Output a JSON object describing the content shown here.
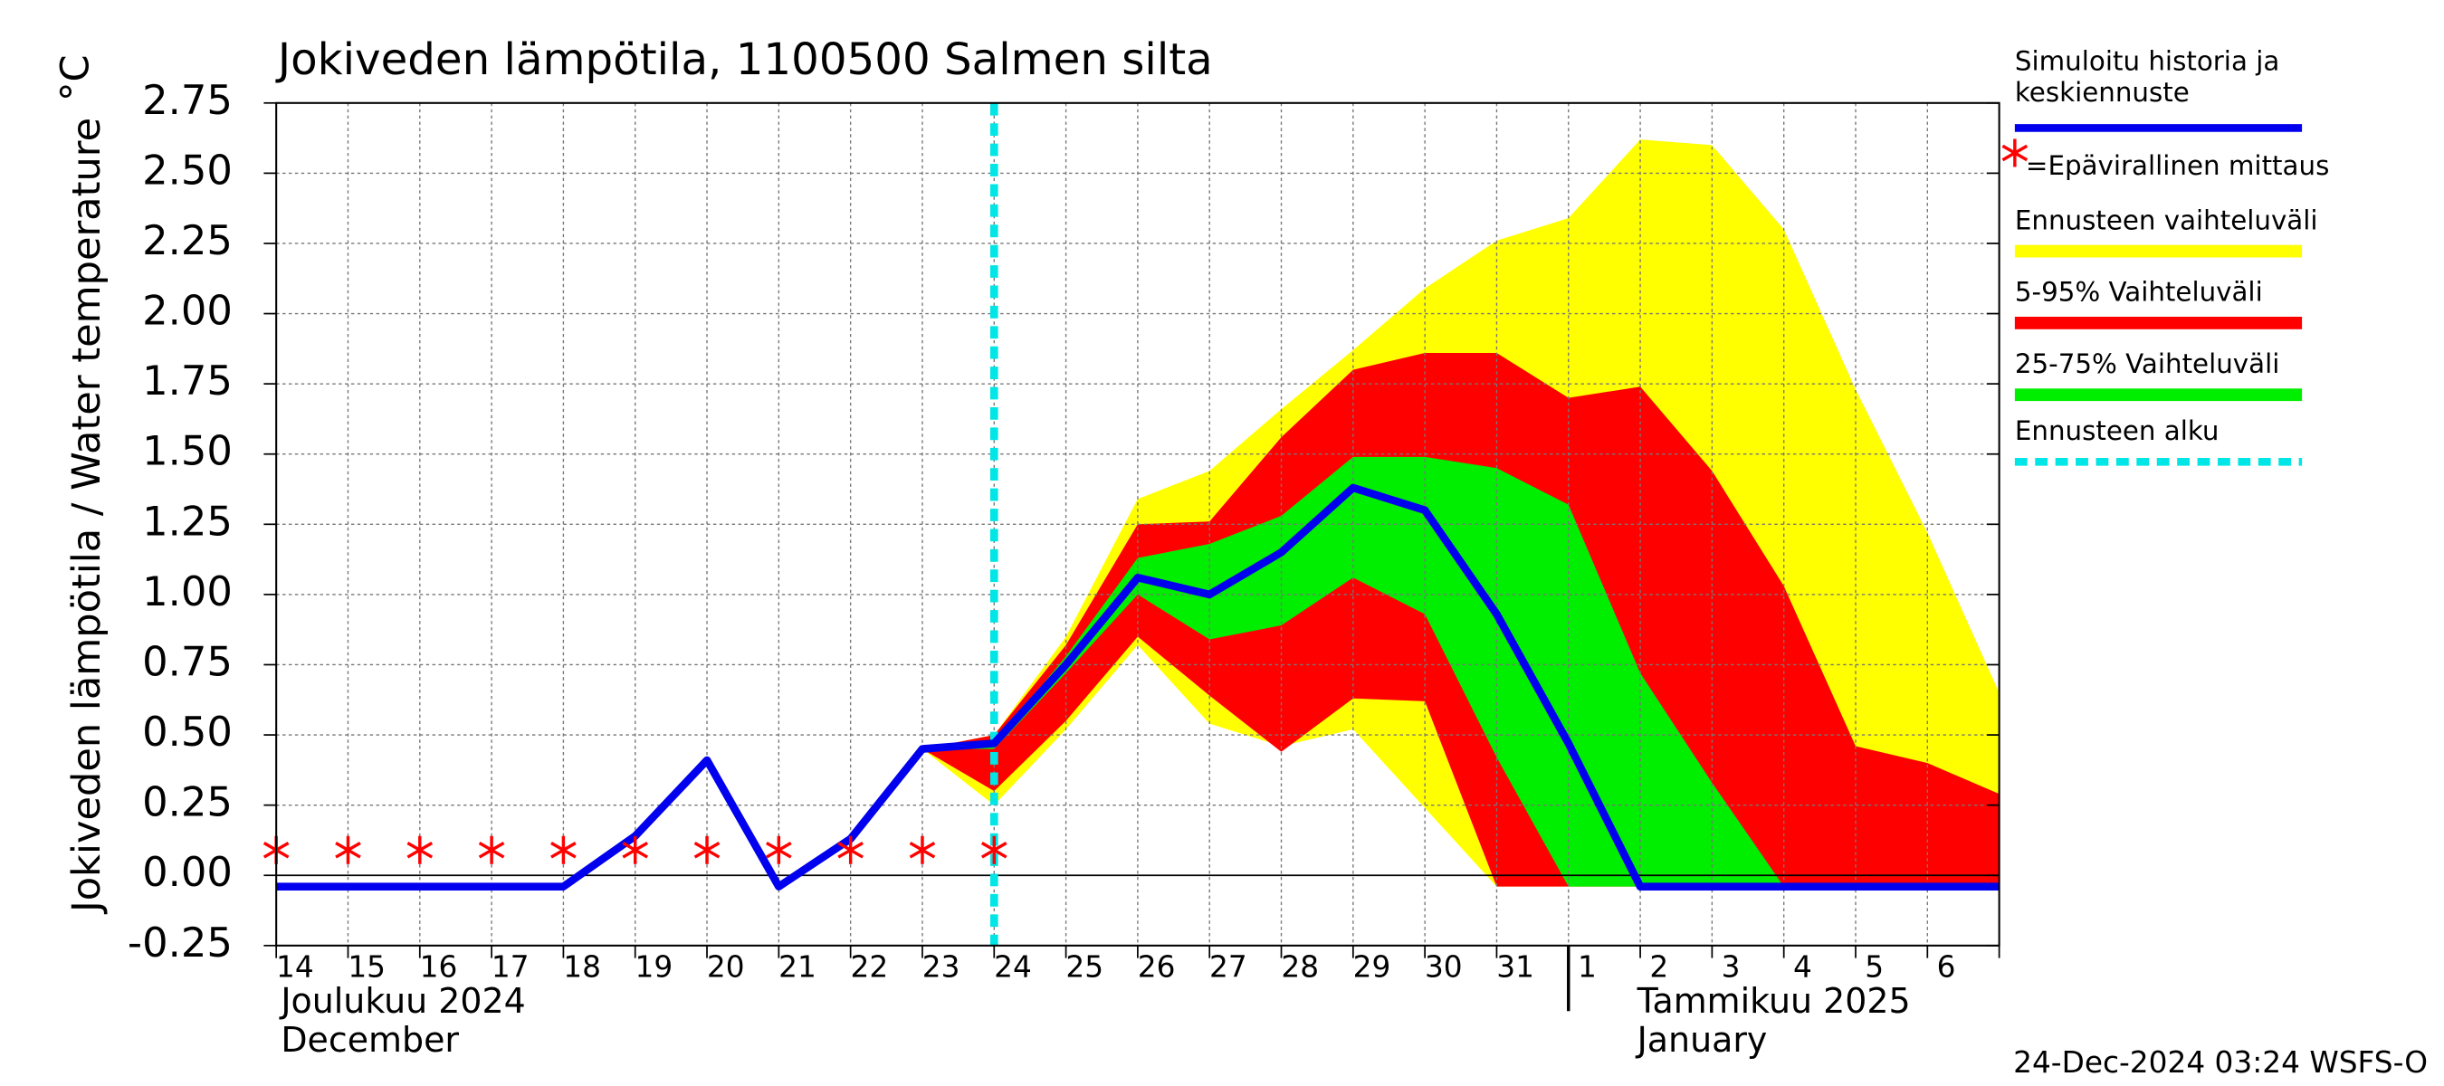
{
  "chart_data": {
    "type": "line",
    "title": "Jokiveden lämpötila, 1100500 Salmen silta",
    "y_label": "Jokiveden lämpötila / Water temperature",
    "y_unit": "°C",
    "categories": [
      "14",
      "15",
      "16",
      "17",
      "18",
      "19",
      "20",
      "21",
      "22",
      "23",
      "24",
      "25",
      "26",
      "27",
      "28",
      "29",
      "30",
      "31",
      "1",
      "2",
      "3",
      "4",
      "5",
      "6",
      null
    ],
    "months": [
      {
        "index": 0,
        "label": "Joulukuu  2024",
        "label_en": "December"
      },
      {
        "index": 18,
        "label": "Tammikuu  2025",
        "label_en": "January"
      }
    ],
    "ylim": [
      -0.25,
      2.75
    ],
    "yticks": [
      -0.25,
      {
        "value": 0,
        "label": "0.00"
      },
      0.25,
      {
        "value": 0.5,
        "label": "0.50"
      },
      0.75,
      {
        "value": 1,
        "label": "1.00"
      },
      1.25,
      {
        "value": 1.5,
        "label": "1.50"
      },
      1.75,
      {
        "value": 2,
        "label": "2.00"
      },
      2.25,
      {
        "value": 2.5,
        "label": "2.50"
      },
      2.75
    ],
    "grid": true,
    "series": [
      {
        "name": "Simuloitu historia ja keskiennuste",
        "color": "#0000ee",
        "values": [
          -0.04,
          -0.04,
          -0.04,
          -0.04,
          -0.04,
          0.14,
          0.41,
          -0.04,
          0.13,
          0.45,
          0.47,
          0.75,
          1.06,
          1.0,
          1.15,
          1.38,
          1.3,
          0.93,
          0.47,
          -0.04,
          -0.04,
          -0.04,
          -0.04,
          -0.04,
          -0.04
        ]
      },
      {
        "name": "=Epävirallinen mittaus",
        "color": "#ff0000",
        "values": [
          0.09,
          0.09,
          0.09,
          0.09,
          0.09,
          0.09,
          0.09,
          0.09,
          0.09,
          0.09,
          0.09,
          null,
          null,
          null,
          null,
          null,
          null,
          null,
          null,
          null,
          null,
          null,
          null,
          null,
          null
        ]
      }
    ],
    "bands": [
      {
        "name": "Ennusteen vaihteluväli",
        "color": "#ffff00",
        "upper": [
          null,
          null,
          null,
          null,
          null,
          null,
          null,
          null,
          null,
          0.45,
          0.5,
          0.85,
          1.34,
          1.44,
          1.66,
          1.87,
          2.09,
          2.26,
          2.34,
          2.62,
          2.6,
          2.3,
          1.73,
          1.22,
          0.65
        ],
        "lower": [
          null,
          null,
          null,
          null,
          null,
          null,
          null,
          null,
          null,
          0.45,
          0.25,
          0.52,
          0.82,
          0.54,
          0.46,
          0.52,
          0.24,
          -0.04,
          -0.04,
          -0.04,
          -0.04,
          -0.04,
          -0.04,
          -0.04,
          -0.04
        ]
      },
      {
        "name": "5-95% Vaihteluväli",
        "color": "#ff0000",
        "upper": [
          null,
          null,
          null,
          null,
          null,
          null,
          null,
          null,
          null,
          0.45,
          0.5,
          0.82,
          1.25,
          1.26,
          1.56,
          1.8,
          1.86,
          1.86,
          1.7,
          1.74,
          1.44,
          1.03,
          0.46,
          0.4,
          0.29
        ],
        "lower": [
          null,
          null,
          null,
          null,
          null,
          null,
          null,
          null,
          null,
          0.45,
          0.3,
          0.55,
          0.85,
          0.64,
          0.44,
          0.63,
          0.62,
          -0.04,
          -0.04,
          -0.04,
          -0.04,
          -0.04,
          -0.04,
          -0.04,
          -0.04
        ]
      },
      {
        "name": "25-75% Vaihteluväli",
        "color": "#00ee00",
        "upper": [
          null,
          null,
          null,
          null,
          null,
          null,
          null,
          null,
          null,
          0.45,
          0.47,
          0.78,
          1.13,
          1.18,
          1.28,
          1.49,
          1.49,
          1.45,
          1.32,
          0.72,
          0.33,
          -0.04,
          -0.04,
          -0.04,
          -0.04
        ],
        "lower": [
          null,
          null,
          null,
          null,
          null,
          null,
          null,
          null,
          null,
          0.45,
          0.45,
          0.72,
          1.0,
          0.84,
          0.89,
          1.06,
          0.93,
          0.42,
          -0.04,
          -0.04,
          -0.04,
          -0.04,
          -0.04,
          -0.04,
          -0.04
        ]
      }
    ],
    "forecast_start": {
      "name": "Ennusteen alku",
      "color": "#00e5e5",
      "index": 10
    },
    "footer": "24-Dec-2024 03:24 WSFS-O"
  }
}
